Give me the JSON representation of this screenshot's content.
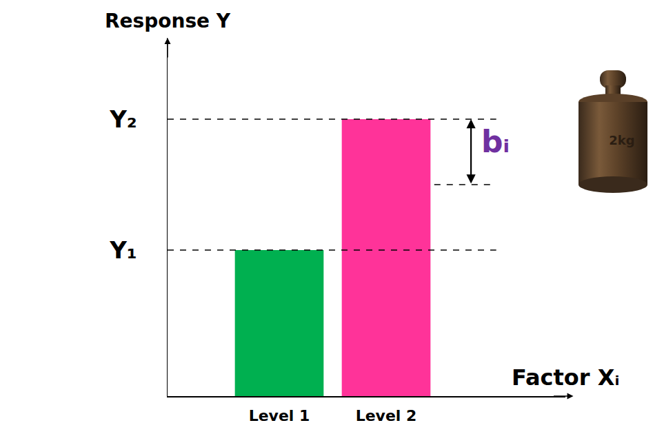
{
  "chart_data": {
    "type": "bar",
    "categories": [
      "Level 1",
      "Level 2"
    ],
    "values": [
      212,
      402
    ],
    "colors": [
      "#00b050",
      "#ff3399"
    ],
    "ylim": [
      0,
      520
    ],
    "yticks": [
      {
        "value": 212,
        "label": "Y₁"
      },
      {
        "value": 402,
        "label": "Y₂"
      }
    ],
    "y_label": "Response Y",
    "x_label": "Factor Xᵢ",
    "grid": false,
    "annotation": {
      "text": "bᵢ",
      "from": 307,
      "to": 402,
      "color": "#7030a0"
    },
    "icon_label": "2kg"
  }
}
